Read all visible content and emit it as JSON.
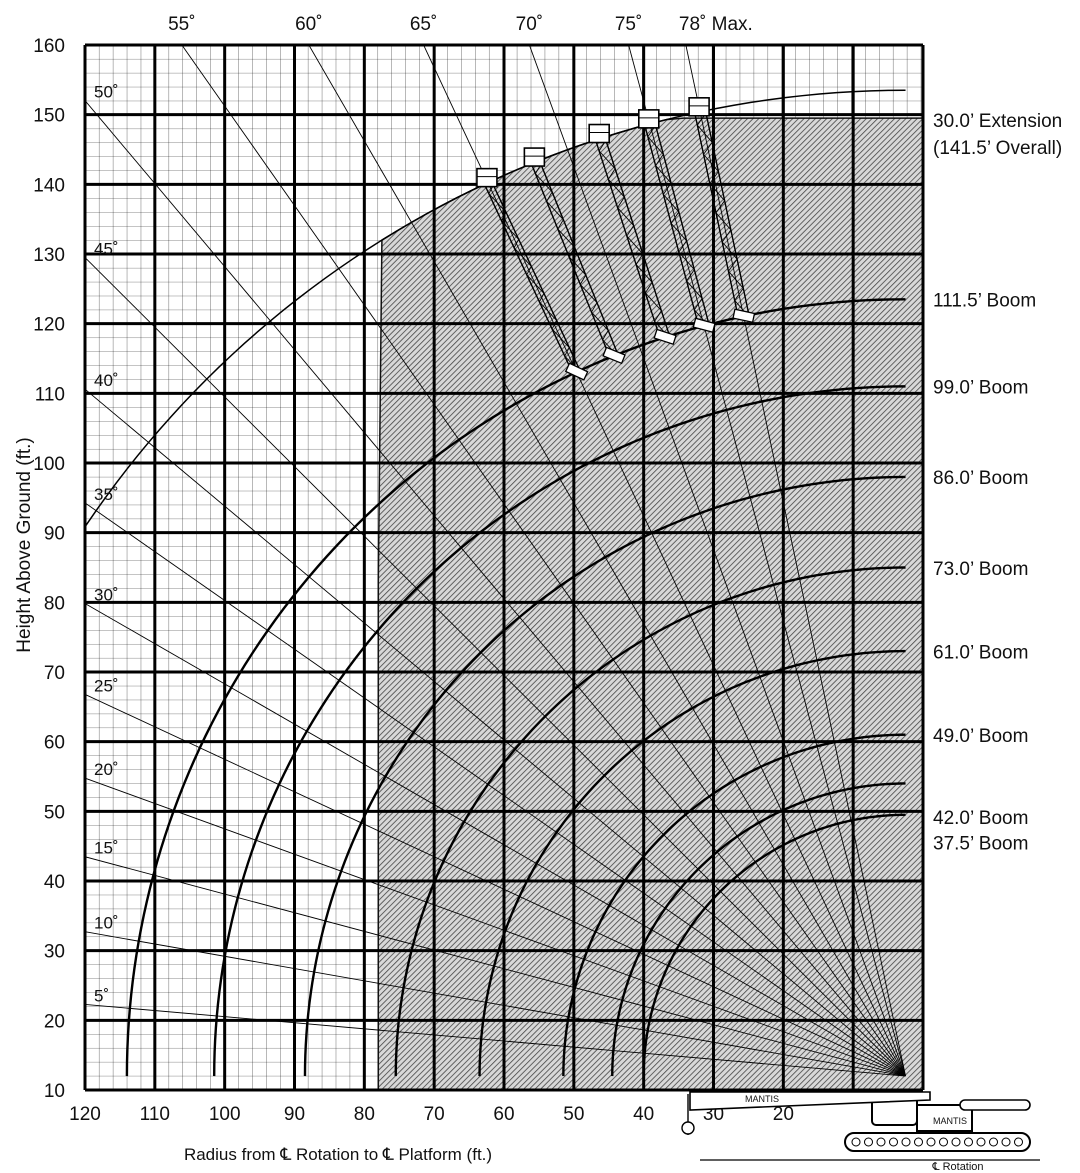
{
  "chart_data": {
    "type": "range-diagram",
    "xlabel": "Radius from ℄ Rotation to ℄ Platform (ft.)",
    "ylabel": "Height Above Ground (ft.)",
    "x_ticks": [
      "120",
      "110",
      "100",
      "90",
      "80",
      "70",
      "60",
      "50",
      "40",
      "30",
      "20"
    ],
    "x_tick_values": [
      120,
      110,
      100,
      90,
      80,
      70,
      60,
      50,
      40,
      30,
      20
    ],
    "y_ticks": [
      "160",
      "150",
      "140",
      "130",
      "120",
      "110",
      "100",
      "90",
      "80",
      "70",
      "60",
      "50",
      "40",
      "30",
      "20",
      "10"
    ],
    "y_tick_values": [
      160,
      150,
      140,
      130,
      120,
      110,
      100,
      90,
      80,
      70,
      60,
      50,
      40,
      30,
      20,
      10
    ],
    "xlim": [
      120,
      0
    ],
    "ylim": [
      10,
      160
    ],
    "grid": true,
    "top_angle_labels": [
      {
        "label": "55˚",
        "deg": 55
      },
      {
        "label": "60˚",
        "deg": 60
      },
      {
        "label": "65˚",
        "deg": 65
      },
      {
        "label": "70˚",
        "deg": 70
      },
      {
        "label": "75˚",
        "deg": 75
      },
      {
        "label": "78˚ Max.",
        "deg": 78
      }
    ],
    "left_angle_labels": [
      {
        "label": "50˚",
        "deg": 50
      },
      {
        "label": "45˚",
        "deg": 45
      },
      {
        "label": "40˚",
        "deg": 40
      },
      {
        "label": "35˚",
        "deg": 35
      },
      {
        "label": "30˚",
        "deg": 30
      },
      {
        "label": "25˚",
        "deg": 25
      },
      {
        "label": "20˚",
        "deg": 20
      },
      {
        "label": "15˚",
        "deg": 15
      },
      {
        "label": "10˚",
        "deg": 10
      },
      {
        "label": "5˚",
        "deg": 5
      }
    ],
    "booms": [
      {
        "label": "30.0’ Extension",
        "label2": "(141.5’ Overall)",
        "length": 141.5,
        "ext": true
      },
      {
        "label": "111.5’ Boom",
        "length": 111.5
      },
      {
        "label": "99.0’ Boom",
        "length": 99.0
      },
      {
        "label": "86.0’ Boom",
        "length": 86.0
      },
      {
        "label": "73.0’ Boom",
        "length": 73.0
      },
      {
        "label": "61.0’ Boom",
        "length": 61.0
      },
      {
        "label": "49.0’ Boom",
        "length": 49.0
      },
      {
        "label": "42.0’ Boom",
        "length": 42.0
      },
      {
        "label": "37.5’ Boom",
        "length": 37.5
      }
    ],
    "platform_angles": [
      65,
      68,
      72,
      75,
      78
    ],
    "crane_model": "MANTIS",
    "rotation_label": "℄ Rotation"
  }
}
